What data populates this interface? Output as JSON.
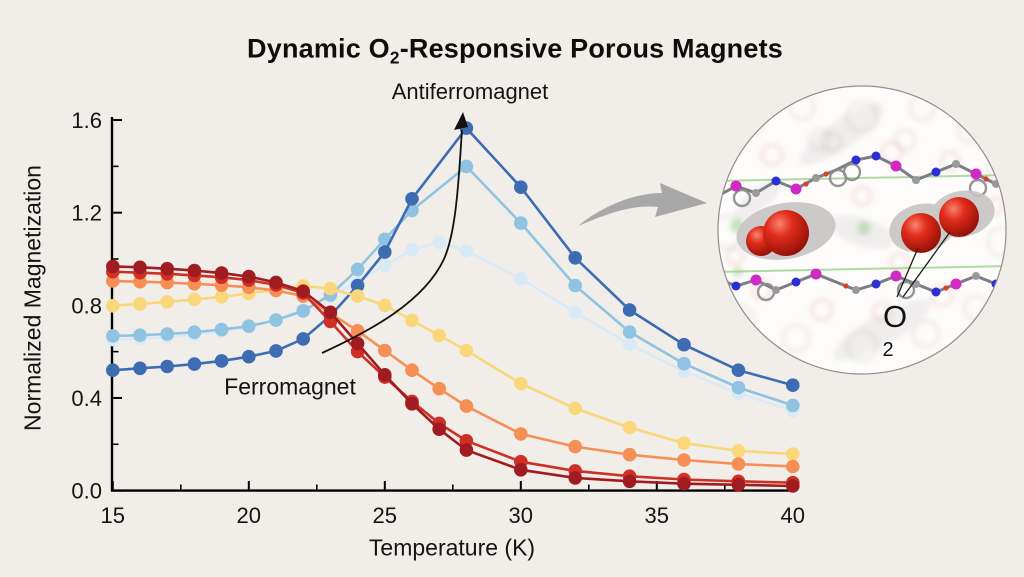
{
  "page": {
    "background": "#f1eeea",
    "title": {
      "prefix": "Dynamic O",
      "sub": "2",
      "suffix": "-Responsive Porous Magnets"
    }
  },
  "chart_data": {
    "type": "line",
    "title": "Dynamic O2-Responsive Porous Magnets",
    "xlabel": "Temperature (K)",
    "ylabel": "Normalized Magnetization",
    "xlim": [
      15,
      40
    ],
    "ylim": [
      0,
      1.6
    ],
    "x_ticks": [
      15,
      20,
      25,
      30,
      35,
      40
    ],
    "x_minor_ticks": [
      17.5,
      22.5,
      27.5,
      32.5,
      37.5
    ],
    "y_ticks": [
      "0.0",
      "0.4",
      "0.8",
      "1.2",
      "1.6"
    ],
    "y_minor_ticks": [
      0.2,
      0.6,
      1.0,
      1.4
    ],
    "grid": false,
    "legend": "none",
    "annotations": [
      {
        "text": "Antiferromagnet",
        "arrow_color": "#111111"
      },
      {
        "text": "Ferromagnet"
      }
    ],
    "series": [
      {
        "name": "palest-blue",
        "color": "#d9eaf6",
        "x": [
          15,
          16,
          17,
          18,
          19,
          20,
          21,
          22,
          23,
          24,
          25,
          26,
          27,
          28,
          30,
          32,
          34,
          36,
          38,
          40
        ],
        "values": [
          0.652,
          0.657,
          0.663,
          0.673,
          0.688,
          0.708,
          0.738,
          0.782,
          0.838,
          0.902,
          0.972,
          1.04,
          1.072,
          1.035,
          0.915,
          0.77,
          0.632,
          0.515,
          0.42,
          0.345
        ]
      },
      {
        "name": "light-blue",
        "color": "#90c2e2",
        "x": [
          15,
          16,
          17,
          18,
          19,
          20,
          21,
          22,
          23,
          24,
          25,
          26,
          28,
          30,
          32,
          34,
          36,
          38,
          40
        ],
        "values": [
          0.668,
          0.671,
          0.676,
          0.684,
          0.695,
          0.71,
          0.736,
          0.776,
          0.845,
          0.955,
          1.085,
          1.21,
          1.4,
          1.155,
          0.885,
          0.685,
          0.548,
          0.445,
          0.368
        ]
      },
      {
        "name": "dark-blue",
        "color": "#3d6cb3",
        "x": [
          15,
          16,
          17,
          18,
          19,
          20,
          21,
          22,
          23,
          24,
          25,
          26,
          28,
          30,
          32,
          34,
          36,
          38,
          40
        ],
        "values": [
          0.52,
          0.528,
          0.536,
          0.546,
          0.56,
          0.578,
          0.603,
          0.655,
          0.755,
          0.885,
          1.03,
          1.26,
          1.565,
          1.31,
          1.005,
          0.78,
          0.63,
          0.52,
          0.455
        ]
      },
      {
        "name": "yellow",
        "color": "#fbd77c",
        "x": [
          15,
          16,
          17,
          18,
          19,
          20,
          21,
          22,
          23,
          24,
          25,
          26,
          27,
          28,
          30,
          32,
          34,
          36,
          38,
          40
        ],
        "values": [
          0.798,
          0.806,
          0.815,
          0.825,
          0.837,
          0.851,
          0.867,
          0.884,
          0.872,
          0.84,
          0.8,
          0.735,
          0.67,
          0.605,
          0.462,
          0.355,
          0.272,
          0.205,
          0.172,
          0.158
        ]
      },
      {
        "name": "orange",
        "color": "#f68f55",
        "x": [
          15,
          16,
          17,
          18,
          19,
          20,
          21,
          22,
          23,
          24,
          25,
          26,
          27,
          28,
          30,
          32,
          34,
          36,
          38,
          40
        ],
        "values": [
          0.905,
          0.902,
          0.898,
          0.893,
          0.887,
          0.878,
          0.864,
          0.84,
          0.765,
          0.69,
          0.605,
          0.52,
          0.44,
          0.365,
          0.245,
          0.19,
          0.155,
          0.132,
          0.115,
          0.104
        ]
      },
      {
        "name": "red",
        "color": "#ce3026",
        "x": [
          15,
          16,
          17,
          18,
          19,
          20,
          21,
          22,
          23,
          24,
          25,
          26,
          27,
          28,
          30,
          32,
          34,
          36,
          38,
          40
        ],
        "values": [
          0.945,
          0.941,
          0.936,
          0.929,
          0.921,
          0.909,
          0.888,
          0.853,
          0.73,
          0.6,
          0.49,
          0.385,
          0.29,
          0.215,
          0.125,
          0.085,
          0.062,
          0.048,
          0.04,
          0.034
        ]
      },
      {
        "name": "dark-red",
        "color": "#a01c20",
        "x": [
          15,
          16,
          17,
          18,
          19,
          20,
          21,
          22,
          23,
          24,
          25,
          26,
          27,
          28,
          30,
          32,
          34,
          36,
          38,
          40
        ],
        "values": [
          0.968,
          0.964,
          0.958,
          0.95,
          0.939,
          0.924,
          0.899,
          0.861,
          0.77,
          0.635,
          0.5,
          0.375,
          0.265,
          0.175,
          0.09,
          0.055,
          0.04,
          0.03,
          0.025,
          0.02
        ]
      }
    ]
  },
  "arrows": {
    "swoosh_color": "#a8a8a8",
    "curve_color": "#111111"
  },
  "inset": {
    "label": {
      "main": "O",
      "sub": "2"
    },
    "colors": {
      "o2_red": "#d6281a",
      "metal_magenta": "#cf2bc4",
      "nitrogen_blue": "#2b2fd4",
      "cell_green": "#a2d494",
      "surface_gray": "#c7c5c3"
    }
  }
}
